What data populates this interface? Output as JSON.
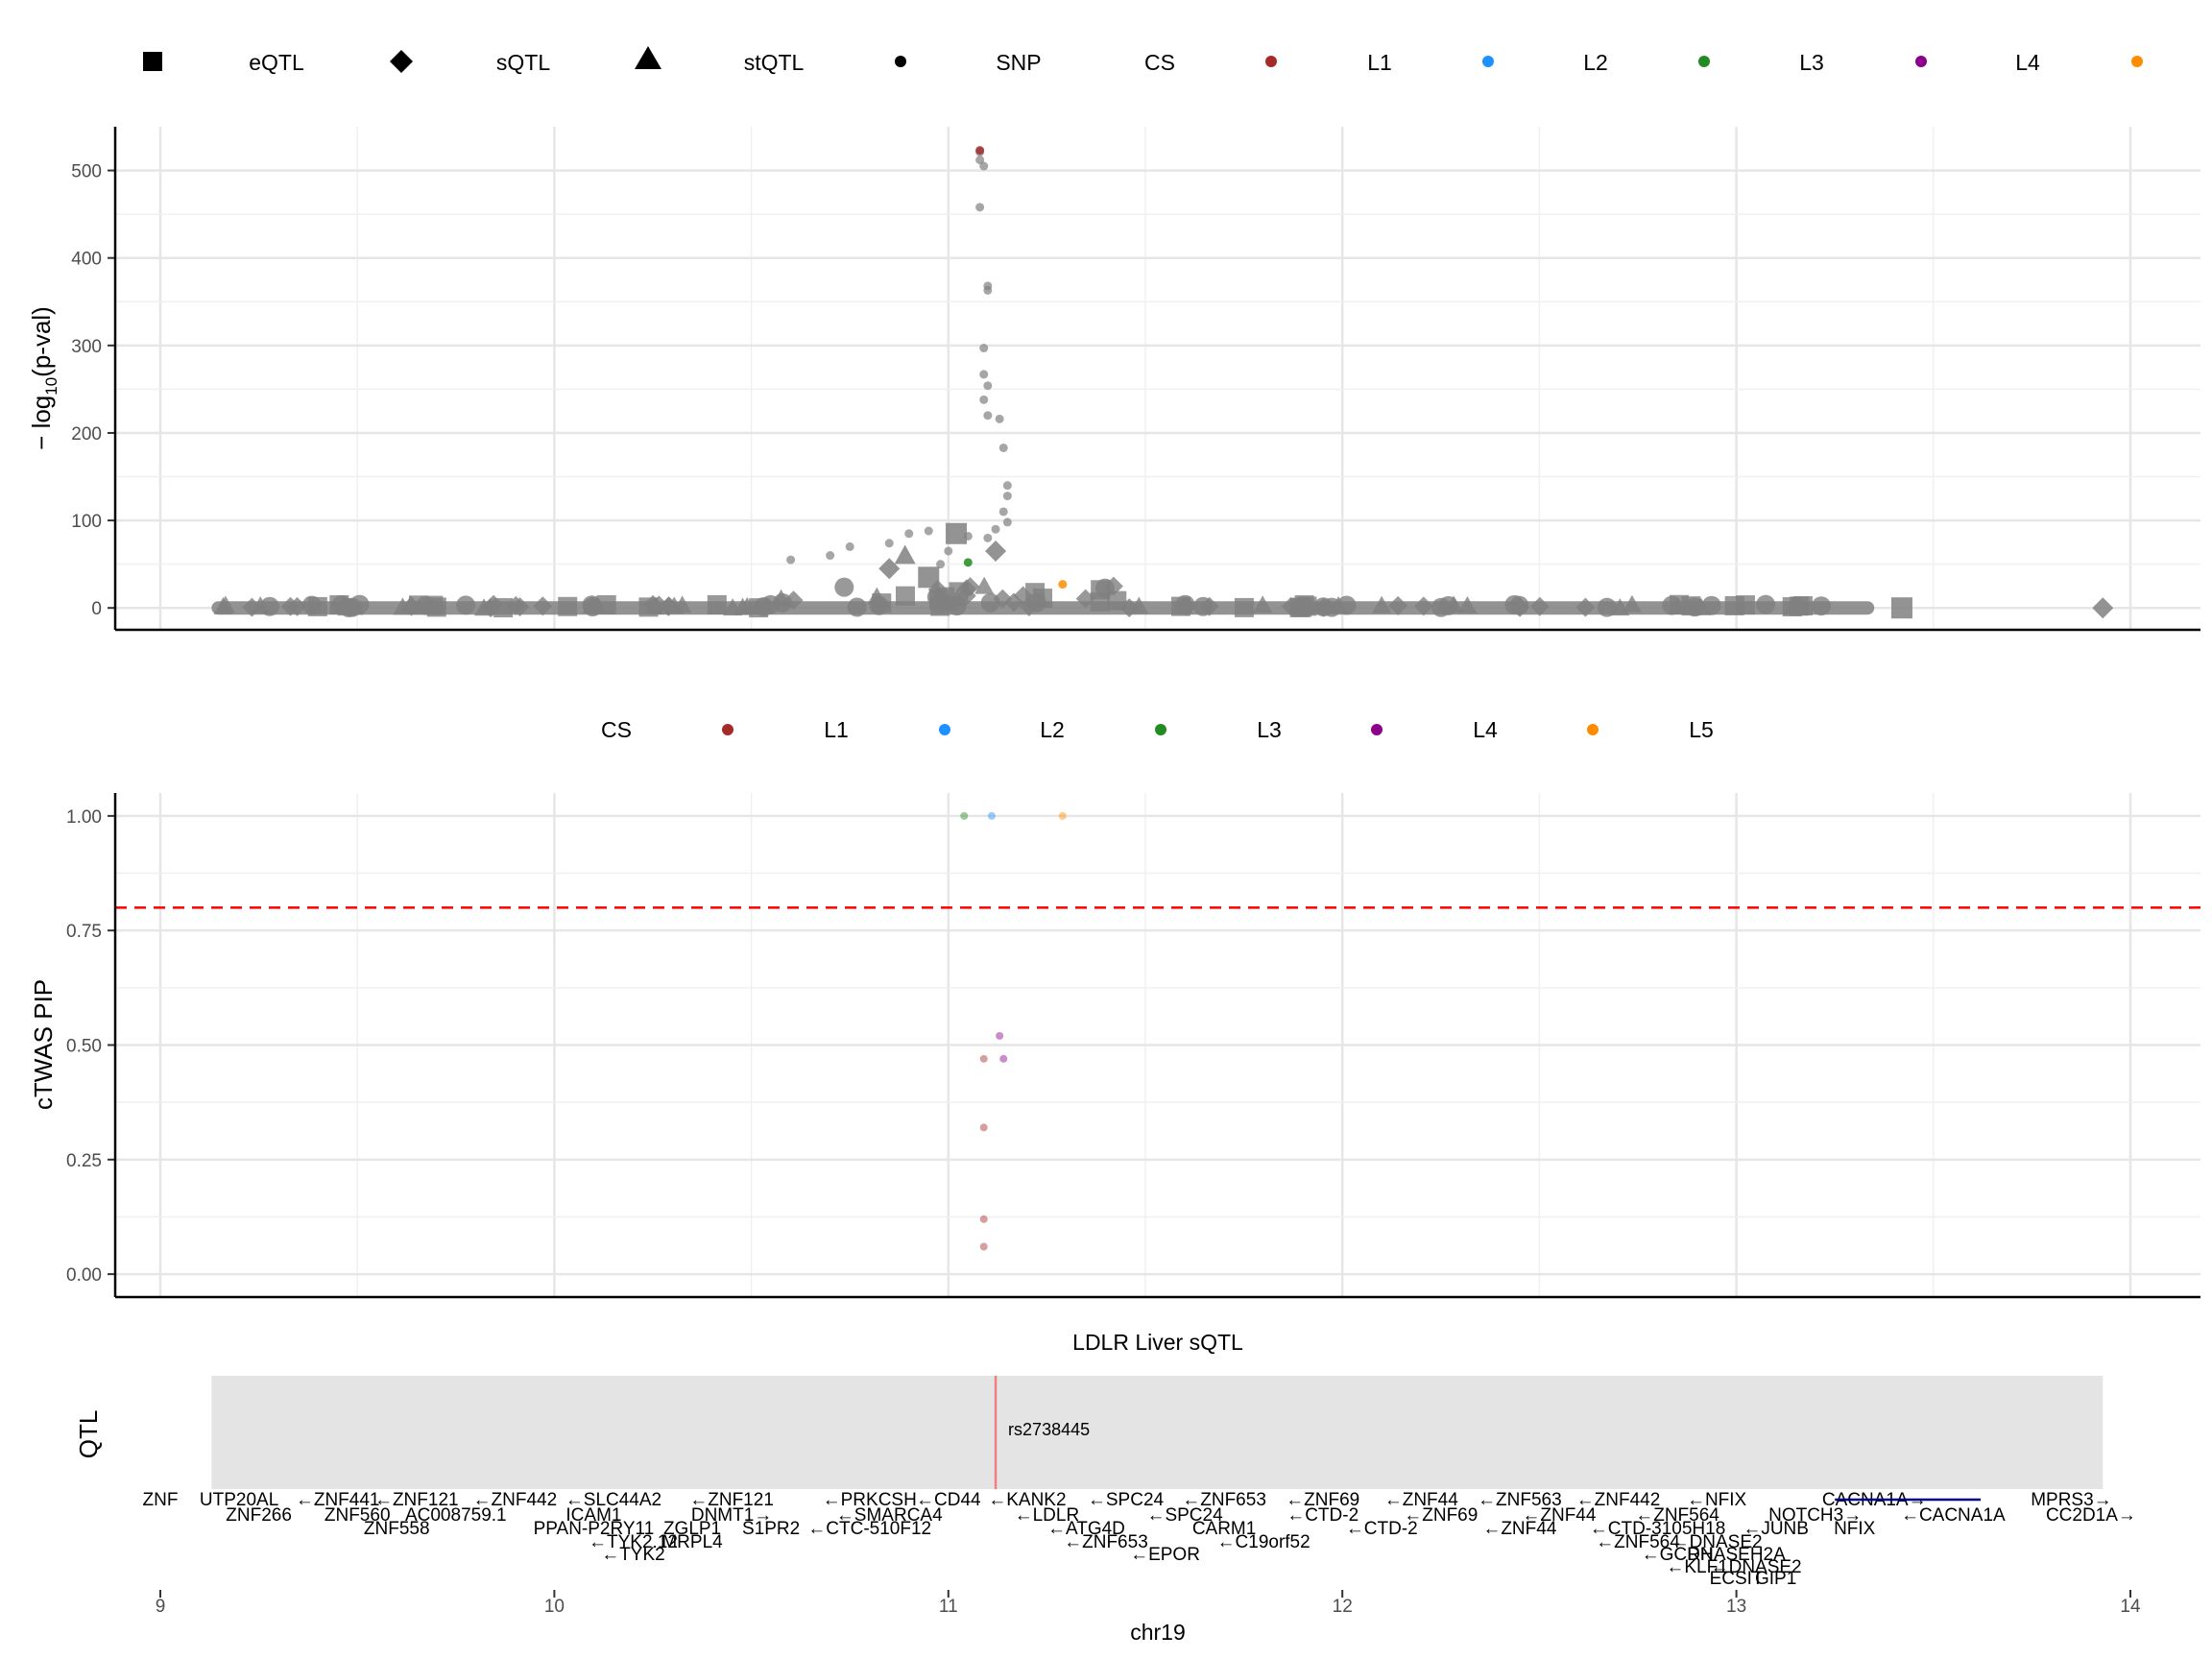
{
  "legend_top": {
    "shapes": [
      {
        "shape": "square",
        "label": "eQTL"
      },
      {
        "shape": "diamond",
        "label": "sQTL"
      },
      {
        "shape": "triangle",
        "label": "stQTL"
      },
      {
        "shape": "circle",
        "label": "SNP"
      }
    ],
    "cs_title": "CS",
    "cs": [
      {
        "label": "L1",
        "color": "#a52a2a"
      },
      {
        "label": "L2",
        "color": "#1e90ff"
      },
      {
        "label": "L3",
        "color": "#228b22"
      },
      {
        "label": "L4",
        "color": "#8b008b"
      },
      {
        "label": "",
        "color": "#ff8c00"
      }
    ]
  },
  "legend_mid": {
    "cs_title": "CS",
    "cs": [
      {
        "label": "L1",
        "color": "#a52a2a"
      },
      {
        "label": "L2",
        "color": "#1e90ff"
      },
      {
        "label": "L3",
        "color": "#228b22"
      },
      {
        "label": "L4",
        "color": "#8b008b"
      },
      {
        "label": "L5",
        "color": "#ff8c00"
      }
    ]
  },
  "qtl_panel": {
    "title": "LDLR Liver sQTL",
    "ylabel": "QTL",
    "span": [
      9.13,
      13.93
    ],
    "marker_x": 11.12,
    "marker_label": "rs2738445"
  },
  "genes": {
    "row1": [
      {
        "x": 9.0,
        "t": "ZNF"
      },
      {
        "x": 9.2,
        "t": "UTP20AL"
      },
      {
        "x": 9.45,
        "t": "←ZNF441"
      },
      {
        "x": 9.65,
        "t": "←ZNF121"
      },
      {
        "x": 9.9,
        "t": "←ZNF442"
      },
      {
        "x": 10.15,
        "t": "←SLC44A2"
      },
      {
        "x": 10.45,
        "t": "←ZNF121"
      },
      {
        "x": 10.8,
        "t": "←PRKCSH"
      },
      {
        "x": 11.0,
        "t": "←CD44"
      },
      {
        "x": 11.2,
        "t": "←KANK2"
      },
      {
        "x": 11.45,
        "t": "←SPC24"
      },
      {
        "x": 11.7,
        "t": "←ZNF653"
      },
      {
        "x": 11.95,
        "t": "←ZNF69"
      },
      {
        "x": 12.2,
        "t": "←ZNF44"
      },
      {
        "x": 12.45,
        "t": "←ZNF563"
      },
      {
        "x": 12.7,
        "t": "←ZNF442"
      },
      {
        "x": 12.95,
        "t": "←NFIX"
      },
      {
        "x": 13.35,
        "t": "CACNA1A→"
      },
      {
        "x": 13.85,
        "t": "MPRS3→"
      }
    ],
    "row2": [
      {
        "x": 9.25,
        "t": "ZNF266"
      },
      {
        "x": 9.5,
        "t": "ZNF560"
      },
      {
        "x": 9.75,
        "t": "AC008759.1"
      },
      {
        "x": 10.1,
        "t": "ICAM1"
      },
      {
        "x": 10.45,
        "t": "DNMT1→"
      },
      {
        "x": 10.85,
        "t": "←SMARCA4"
      },
      {
        "x": 11.25,
        "t": "←LDLR"
      },
      {
        "x": 11.6,
        "t": "←SPC24"
      },
      {
        "x": 11.95,
        "t": "←CTD-2"
      },
      {
        "x": 12.25,
        "t": "←ZNF69"
      },
      {
        "x": 12.55,
        "t": "←ZNF44"
      },
      {
        "x": 12.85,
        "t": "←ZNF564"
      },
      {
        "x": 13.2,
        "t": "NOTCH3→"
      },
      {
        "x": 13.55,
        "t": "←CACNA1A"
      },
      {
        "x": 13.9,
        "t": "CC2D1A→"
      }
    ],
    "row3": [
      {
        "x": 9.6,
        "t": "ZNF558"
      },
      {
        "x": 10.1,
        "t": "PPAN-P2RY11"
      },
      {
        "x": 10.35,
        "t": "ZGLP1"
      },
      {
        "x": 10.55,
        "t": "S1PR2"
      },
      {
        "x": 10.8,
        "t": "←CTC-510F12"
      },
      {
        "x": 11.35,
        "t": "←ATG4D"
      },
      {
        "x": 11.7,
        "t": "CARM1"
      },
      {
        "x": 12.1,
        "t": "←CTD-2"
      },
      {
        "x": 12.45,
        "t": "←ZNF44"
      },
      {
        "x": 12.8,
        "t": "←CTD-3105H18"
      },
      {
        "x": 13.1,
        "t": "←JUNB"
      },
      {
        "x": 13.3,
        "t": "NFIX"
      }
    ],
    "row4": [
      {
        "x": 10.2,
        "t": "←TYK2.12"
      },
      {
        "x": 10.35,
        "t": "MRPL4"
      },
      {
        "x": 11.4,
        "t": "←ZNF653"
      },
      {
        "x": 11.8,
        "t": "←C19orf52"
      },
      {
        "x": 12.75,
        "t": "←ZNF564"
      },
      {
        "x": 12.95,
        "t": "←DNASE2"
      }
    ],
    "row5": [
      {
        "x": 10.2,
        "t": "←TYK2"
      },
      {
        "x": 11.55,
        "t": "←EPOR"
      },
      {
        "x": 12.85,
        "t": "←GCDH"
      },
      {
        "x": 13.0,
        "t": "RNASEH2A"
      }
    ],
    "row6": [
      {
        "x": 12.9,
        "t": "←KLF1"
      },
      {
        "x": 13.05,
        "t": "←DNASE2"
      }
    ],
    "row7": [
      {
        "x": 13.0,
        "t": "ECSIT"
      },
      {
        "x": 13.1,
        "t": "GIP1"
      }
    ]
  },
  "xaxis": {
    "title": "chr19",
    "ticks": [
      9,
      10,
      11,
      12,
      13,
      14
    ]
  },
  "chart_data": [
    {
      "type": "scatter",
      "title": "",
      "xlabel": "",
      "ylabel": "−log10(p-val)",
      "xlim": [
        8.75,
        14.2
      ],
      "ylim": [
        -25,
        550
      ],
      "yticks": [
        0,
        100,
        200,
        300,
        400,
        500
      ],
      "grid": true,
      "legend_position": "top",
      "series": [
        {
          "name": "SNP",
          "color": "#808080",
          "x": [
            11.08,
            11.08,
            11.09,
            11.08,
            11.1,
            11.1,
            11.09,
            11.09,
            11.1,
            11.09,
            11.1,
            11.13,
            11.14,
            11.15,
            11.15,
            11.14,
            11.15,
            11.12,
            11.1,
            10.95,
            10.9,
            10.85,
            10.75,
            10.7,
            10.6,
            11.05,
            11.0,
            10.98
          ],
          "y": [
            521,
            512,
            505,
            458,
            368,
            363,
            297,
            267,
            254,
            238,
            220,
            216,
            183,
            140,
            128,
            110,
            98,
            90,
            80,
            88,
            85,
            74,
            70,
            60,
            55,
            82,
            65,
            50
          ]
        },
        {
          "name": "eQTL",
          "color": "#808080",
          "x": [
            13.42,
            11.02,
            10.95
          ],
          "y": [
            0,
            85,
            35
          ]
        },
        {
          "name": "sQTL",
          "color": "#808080",
          "x": [
            13.93,
            10.85,
            11.12
          ],
          "y": [
            0,
            45,
            65
          ]
        },
        {
          "name": "stQTL",
          "color": "#808080",
          "x": [
            10.89
          ],
          "y": [
            60
          ]
        },
        {
          "name": "L1",
          "color": "#a52a2a",
          "x": [
            11.08
          ],
          "y": [
            523
          ]
        },
        {
          "name": "L3",
          "color": "#228b22",
          "x": [
            11.05
          ],
          "y": [
            52
          ]
        },
        {
          "name": "L5",
          "color": "#ff8c00",
          "x": [
            11.29
          ],
          "y": [
            27
          ]
        }
      ]
    },
    {
      "type": "scatter",
      "title": "",
      "xlabel": "chr19",
      "ylabel": "cTWAS PIP",
      "xlim": [
        8.75,
        14.2
      ],
      "ylim": [
        -0.05,
        1.05
      ],
      "yticks": [
        0.0,
        0.25,
        0.5,
        0.75,
        1.0
      ],
      "grid": true,
      "threshold": 0.8,
      "legend_position": "top",
      "series": [
        {
          "name": "L1",
          "color": "#a52a2a",
          "x": [
            11.09,
            11.09,
            11.09,
            11.09
          ],
          "y": [
            0.47,
            0.32,
            0.12,
            0.06
          ]
        },
        {
          "name": "L2",
          "color": "#1e90ff",
          "x": [
            11.11
          ],
          "y": [
            1.0
          ]
        },
        {
          "name": "L3",
          "color": "#228b22",
          "x": [
            11.04
          ],
          "y": [
            1.0
          ]
        },
        {
          "name": "L4",
          "color": "#8b008b",
          "x": [
            11.13,
            11.14
          ],
          "y": [
            0.52,
            0.47
          ]
        },
        {
          "name": "L5",
          "color": "#ff8c00",
          "x": [
            11.29
          ],
          "y": [
            1.0
          ]
        }
      ]
    }
  ]
}
